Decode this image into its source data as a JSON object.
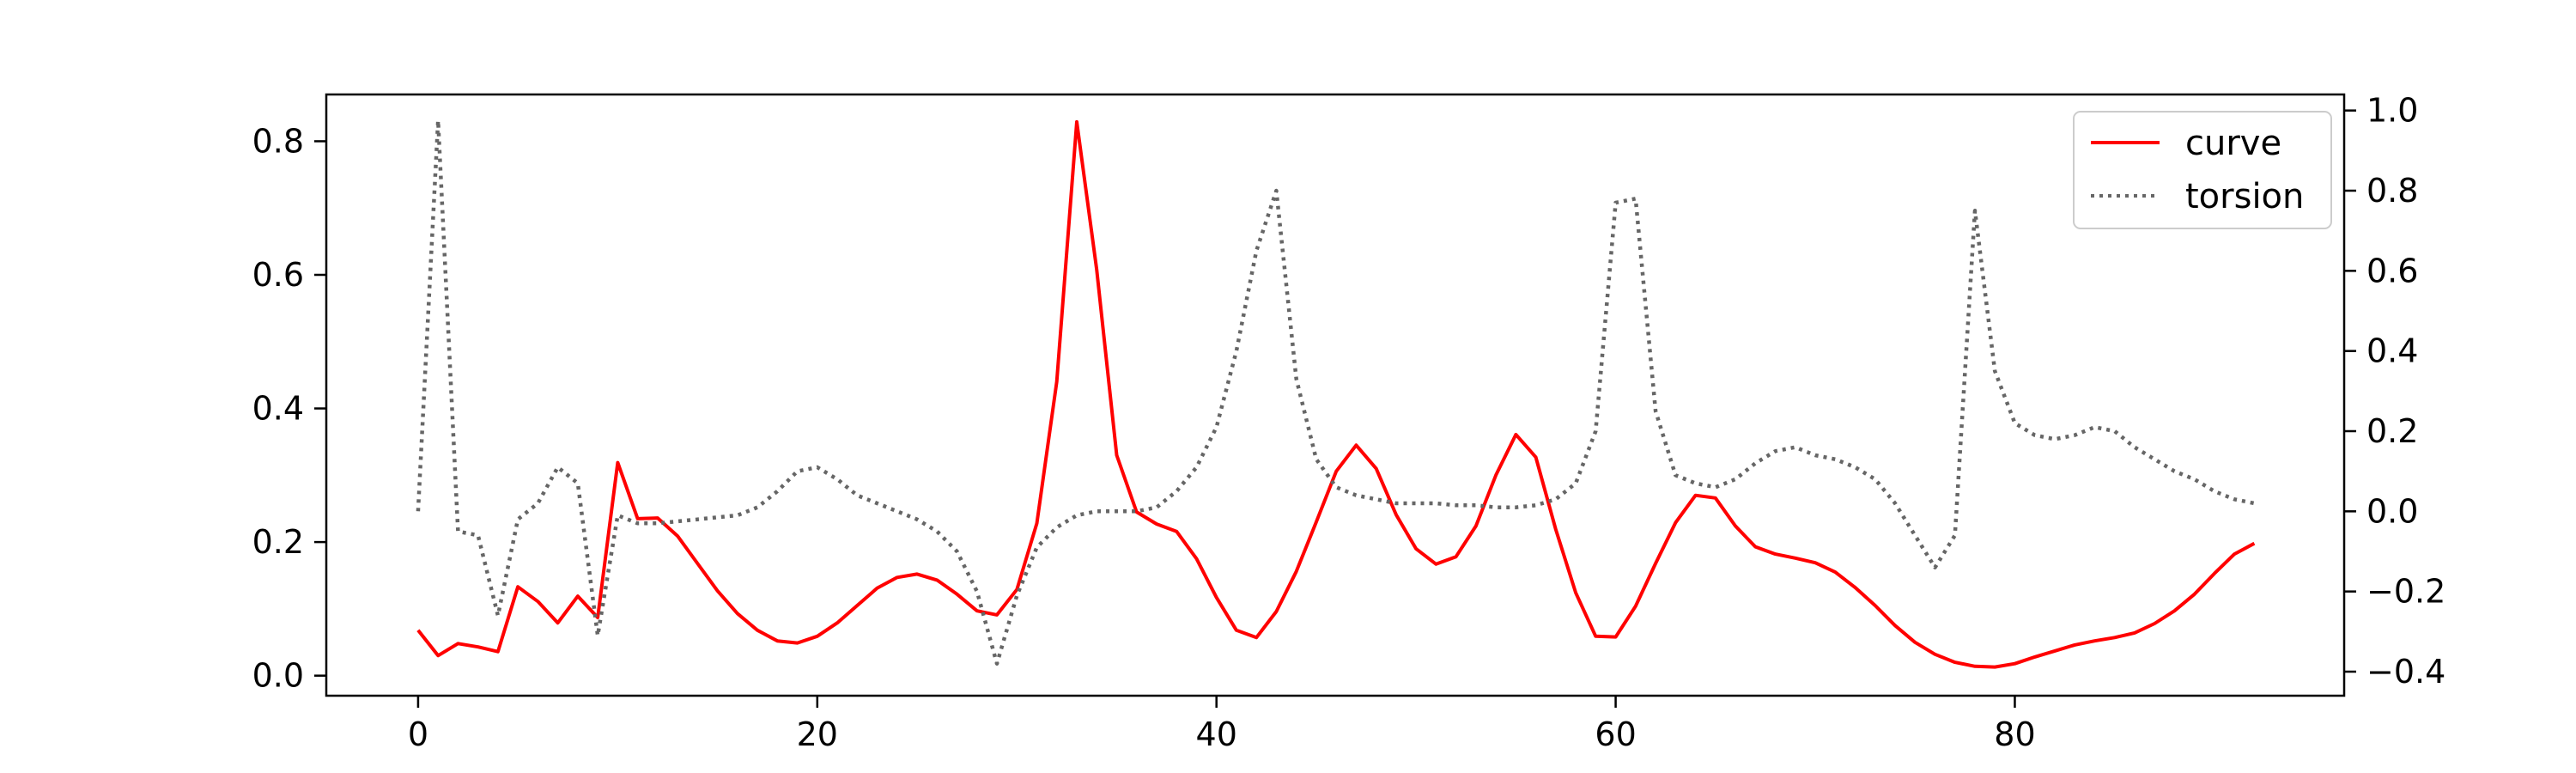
{
  "chart_data": {
    "type": "line",
    "title": "",
    "xlabel": "",
    "ylabel": "",
    "y2label": "",
    "xlim": [
      -4.6,
      96.5
    ],
    "ylim": [
      -0.03,
      0.87
    ],
    "y2lim": [
      -0.46,
      1.04
    ],
    "xticks": [
      0,
      20,
      40,
      60,
      80
    ],
    "yticks": [
      0.0,
      0.2,
      0.4,
      0.6,
      0.8
    ],
    "y2ticks": [
      -0.4,
      -0.2,
      0.0,
      0.2,
      0.4,
      0.6,
      0.8,
      1.0
    ],
    "xtick_labels": [
      "0",
      "20",
      "40",
      "60",
      "80"
    ],
    "ytick_labels": [
      "0.0",
      "0.2",
      "0.4",
      "0.6",
      "0.8"
    ],
    "y2tick_labels": [
      "−0.4",
      "−0.2",
      "0.0",
      "0.2",
      "0.4",
      "0.6",
      "0.8",
      "1.0"
    ],
    "grid": false,
    "legend_position": "top-right",
    "series": [
      {
        "name": "curve",
        "axis": "left",
        "color": "#ff0000",
        "style": "solid",
        "x": [
          0,
          1,
          2,
          3,
          4,
          5,
          6,
          7,
          8,
          9,
          10,
          11,
          12,
          13,
          14,
          15,
          16,
          17,
          18,
          19,
          20,
          21,
          22,
          23,
          24,
          25,
          26,
          27,
          28,
          29,
          30,
          31,
          32,
          33,
          34,
          35,
          36,
          37,
          38,
          39,
          40,
          41,
          42,
          43,
          44,
          45,
          46,
          47,
          48,
          49,
          50,
          51,
          52,
          53,
          54,
          55,
          56,
          57,
          58,
          59,
          60,
          61,
          62,
          63,
          64,
          65,
          66,
          67,
          68,
          69,
          70,
          71,
          72,
          73,
          74,
          75,
          76,
          77,
          78,
          79,
          80,
          81,
          82,
          83,
          84,
          85,
          86,
          87,
          88,
          89,
          90,
          91,
          92
        ],
        "values": [
          0.068,
          0.03,
          0.048,
          0.043,
          0.036,
          0.133,
          0.111,
          0.079,
          0.119,
          0.087,
          0.319,
          0.235,
          0.236,
          0.209,
          0.168,
          0.127,
          0.093,
          0.068,
          0.052,
          0.049,
          0.059,
          0.079,
          0.105,
          0.131,
          0.147,
          0.152,
          0.143,
          0.122,
          0.097,
          0.091,
          0.129,
          0.228,
          0.44,
          0.829,
          0.608,
          0.33,
          0.245,
          0.227,
          0.216,
          0.175,
          0.117,
          0.068,
          0.057,
          0.096,
          0.156,
          0.23,
          0.306,
          0.345,
          0.31,
          0.241,
          0.19,
          0.167,
          0.178,
          0.224,
          0.3,
          0.361,
          0.327,
          0.219,
          0.124,
          0.059,
          0.058,
          0.104,
          0.168,
          0.229,
          0.27,
          0.266,
          0.224,
          0.193,
          0.182,
          0.176,
          0.169,
          0.155,
          0.132,
          0.105,
          0.075,
          0.05,
          0.032,
          0.02,
          0.014,
          0.013,
          0.018,
          0.028,
          0.037,
          0.046,
          0.052,
          0.057,
          0.064,
          0.078,
          0.097,
          0.122,
          0.153,
          0.182,
          0.198
        ]
      },
      {
        "name": "torsion",
        "axis": "right",
        "color": "#666666",
        "style": "dotted",
        "x": [
          0,
          1,
          2,
          3,
          4,
          5,
          6,
          7,
          8,
          9,
          10,
          11,
          12,
          13,
          14,
          15,
          16,
          17,
          18,
          19,
          20,
          21,
          22,
          23,
          24,
          25,
          26,
          27,
          28,
          29,
          30,
          31,
          32,
          33,
          34,
          35,
          36,
          37,
          38,
          39,
          40,
          41,
          42,
          43,
          44,
          45,
          46,
          47,
          48,
          49,
          50,
          51,
          52,
          53,
          54,
          55,
          56,
          57,
          58,
          59,
          60,
          61,
          62,
          63,
          64,
          65,
          66,
          67,
          68,
          69,
          70,
          71,
          72,
          73,
          74,
          75,
          76,
          77,
          78,
          79,
          80,
          81,
          82,
          83,
          84,
          85,
          86,
          87,
          88,
          89,
          90,
          91,
          92
        ],
        "values": [
          0.0,
          0.975,
          -0.05,
          -0.06,
          -0.26,
          -0.02,
          0.02,
          0.11,
          0.07,
          -0.31,
          -0.01,
          -0.03,
          -0.03,
          -0.025,
          -0.02,
          -0.015,
          -0.01,
          0.01,
          0.05,
          0.1,
          0.11,
          0.08,
          0.04,
          0.02,
          0.0,
          -0.02,
          -0.05,
          -0.1,
          -0.2,
          -0.38,
          -0.21,
          -0.09,
          -0.04,
          -0.01,
          0.0,
          0.0,
          0.0,
          0.01,
          0.05,
          0.11,
          0.21,
          0.4,
          0.65,
          0.8,
          0.33,
          0.13,
          0.06,
          0.04,
          0.03,
          0.02,
          0.02,
          0.02,
          0.015,
          0.015,
          0.01,
          0.01,
          0.015,
          0.03,
          0.07,
          0.2,
          0.77,
          0.78,
          0.25,
          0.09,
          0.07,
          0.06,
          0.08,
          0.12,
          0.15,
          0.16,
          0.14,
          0.13,
          0.11,
          0.08,
          0.02,
          -0.06,
          -0.14,
          -0.06,
          0.75,
          0.35,
          0.22,
          0.19,
          0.18,
          0.19,
          0.21,
          0.2,
          0.16,
          0.13,
          0.1,
          0.08,
          0.05,
          0.03,
          0.02
        ]
      }
    ]
  }
}
